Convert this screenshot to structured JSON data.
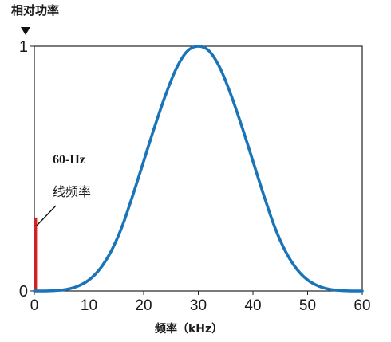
{
  "chart_data": {
    "type": "line",
    "ylabel": "相对功率",
    "xlabel": "频率（kHz）",
    "xlim": [
      0,
      60
    ],
    "ylim": [
      0,
      1
    ],
    "x_ticks": [
      "0",
      "10",
      "20",
      "30",
      "40",
      "50",
      "60"
    ],
    "y_ticks": [
      "0",
      "1"
    ],
    "series": [
      {
        "color": "#1a74b8",
        "x": [
          0,
          2,
          4,
          6,
          8,
          10,
          12,
          14,
          16,
          18,
          20,
          22,
          24,
          26,
          28,
          30,
          32,
          34,
          36,
          38,
          40,
          42,
          44,
          46,
          48,
          50,
          52,
          54,
          56,
          58,
          60
        ],
        "y": [
          0.0,
          0.0,
          0.002,
          0.007,
          0.02,
          0.045,
          0.09,
          0.16,
          0.26,
          0.39,
          0.53,
          0.67,
          0.8,
          0.91,
          0.98,
          1.0,
          0.98,
          0.91,
          0.8,
          0.67,
          0.53,
          0.39,
          0.26,
          0.16,
          0.09,
          0.045,
          0.02,
          0.007,
          0.002,
          0.0,
          0.0
        ]
      }
    ],
    "bar": {
      "x": 0.06,
      "value": 0.3,
      "color": "#d42020"
    },
    "annotation": {
      "line1": "60-Hz",
      "line2": "线频率"
    },
    "grid": false,
    "arrow_color": "#111111"
  }
}
